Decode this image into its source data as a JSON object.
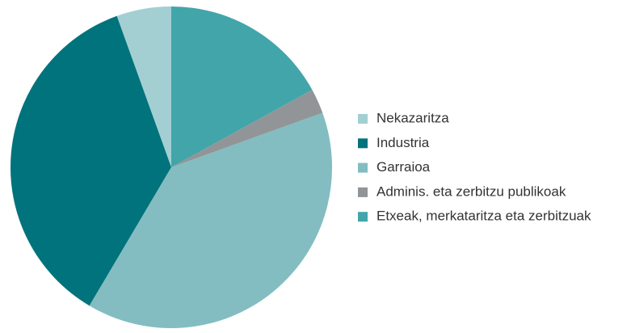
{
  "chart_data": {
    "type": "pie",
    "categories": [
      "Nekazaritza",
      "Industria",
      "Garraioa",
      "Adminis. eta zerbitzu publikoak",
      "Etxeak, merkataritza eta zerbitzuak"
    ],
    "values": [
      5.5,
      36,
      39,
      2.5,
      17
    ],
    "colors": [
      "#a3cfd3",
      "#00737c",
      "#83bdc1",
      "#929597",
      "#42a5aa"
    ],
    "direction": "counterclockwise",
    "legend": "right"
  }
}
